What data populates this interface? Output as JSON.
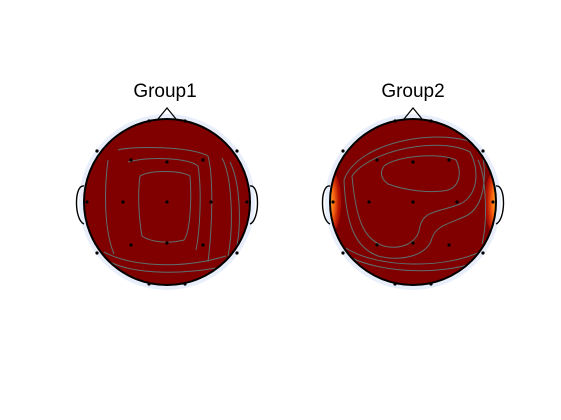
{
  "figure": {
    "background_color": "#ffffff",
    "panels": [
      {
        "title": "Group1"
      },
      {
        "title": "Group2"
      }
    ]
  },
  "colors": {
    "map_fill": "#800000",
    "contour": "#5a6a6a",
    "halo": "#e6ecf8",
    "outline": "#000000",
    "hot_edge": "#ff5a14",
    "hot_core": "#ffc020"
  },
  "electrodes": {
    "count": 19
  }
}
